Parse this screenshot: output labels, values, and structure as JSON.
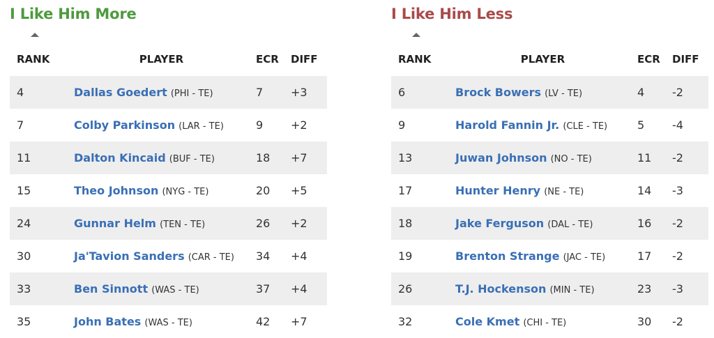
{
  "more": {
    "title": "I Like Him More",
    "columns": {
      "rank": "RANK",
      "player": "PLAYER",
      "ecr": "ECR",
      "diff": "DIFF"
    },
    "rows": [
      {
        "rank": "4",
        "name": "Dallas Goedert",
        "team": "(PHI - TE)",
        "ecr": "7",
        "diff": "+3"
      },
      {
        "rank": "7",
        "name": "Colby Parkinson",
        "team": "(LAR - TE)",
        "ecr": "9",
        "diff": "+2"
      },
      {
        "rank": "11",
        "name": "Dalton Kincaid",
        "team": "(BUF - TE)",
        "ecr": "18",
        "diff": "+7"
      },
      {
        "rank": "15",
        "name": "Theo Johnson",
        "team": "(NYG - TE)",
        "ecr": "20",
        "diff": "+5"
      },
      {
        "rank": "24",
        "name": "Gunnar Helm",
        "team": "(TEN - TE)",
        "ecr": "26",
        "diff": "+2"
      },
      {
        "rank": "30",
        "name": "Ja'Tavion Sanders",
        "team": "(CAR - TE)",
        "ecr": "34",
        "diff": "+4"
      },
      {
        "rank": "33",
        "name": "Ben Sinnott",
        "team": "(WAS - TE)",
        "ecr": "37",
        "diff": "+4"
      },
      {
        "rank": "35",
        "name": "John Bates",
        "team": "(WAS - TE)",
        "ecr": "42",
        "diff": "+7"
      }
    ]
  },
  "less": {
    "title": "I Like Him Less",
    "columns": {
      "rank": "RANK",
      "player": "PLAYER",
      "ecr": "ECR",
      "diff": "DIFF"
    },
    "rows": [
      {
        "rank": "6",
        "name": "Brock Bowers",
        "team": "(LV - TE)",
        "ecr": "4",
        "diff": "-2"
      },
      {
        "rank": "9",
        "name": "Harold Fannin Jr.",
        "team": "(CLE - TE)",
        "ecr": "5",
        "diff": "-4"
      },
      {
        "rank": "13",
        "name": "Juwan Johnson",
        "team": "(NO - TE)",
        "ecr": "11",
        "diff": "-2"
      },
      {
        "rank": "17",
        "name": "Hunter Henry",
        "team": "(NE - TE)",
        "ecr": "14",
        "diff": "-3"
      },
      {
        "rank": "18",
        "name": "Jake Ferguson",
        "team": "(DAL - TE)",
        "ecr": "16",
        "diff": "-2"
      },
      {
        "rank": "19",
        "name": "Brenton Strange",
        "team": "(JAC - TE)",
        "ecr": "17",
        "diff": "-2"
      },
      {
        "rank": "26",
        "name": "T.J. Hockenson",
        "team": "(MIN - TE)",
        "ecr": "23",
        "diff": "-3"
      },
      {
        "rank": "32",
        "name": "Cole Kmet",
        "team": "(CHI - TE)",
        "ecr": "30",
        "diff": "-2"
      }
    ]
  },
  "colors": {
    "more_title": "#4e9a3e",
    "less_title": "#a94a4a",
    "player_link": "#3a6fb5",
    "stripe": "#eeeeee"
  },
  "icons": {
    "sort": "sort-up-icon"
  }
}
